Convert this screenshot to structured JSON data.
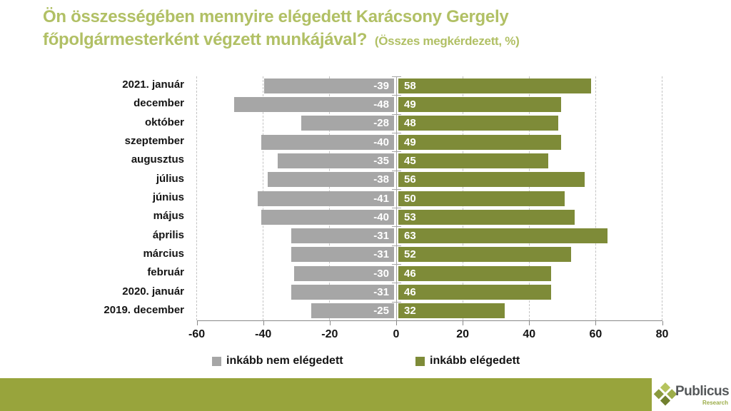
{
  "title": {
    "line1": "Ön összességében mennyire elégedett Karácsony Gergely",
    "line2": "főpolgármesterként végzett munkájával?",
    "suffix": "(Összes megkérdezett, %)",
    "color": "#b1c065"
  },
  "chart_data": {
    "type": "bar",
    "orientation": "horizontal-diverging",
    "categories": [
      "2021. január",
      "december",
      "október",
      "szeptember",
      "augusztus",
      "július",
      "június",
      "május",
      "április",
      "március",
      "február",
      "2020. január",
      "2019. december"
    ],
    "series": [
      {
        "name": "inkább nem elégedett",
        "color": "#a6a6a6",
        "values": [
          -39,
          -48,
          -28,
          -40,
          -35,
          -38,
          -41,
          -40,
          -31,
          -31,
          -30,
          -31,
          -25
        ]
      },
      {
        "name": "inkább elégedett",
        "color": "#7e8b38",
        "values": [
          58,
          49,
          48,
          49,
          45,
          56,
          50,
          53,
          63,
          52,
          46,
          46,
          32
        ]
      }
    ],
    "xticks": [
      -60,
      -40,
      -20,
      0,
      20,
      40,
      60,
      80
    ],
    "xlim": [
      -60,
      80
    ],
    "grid": "vertical-dashed",
    "value_labels": "inside-end, white bold",
    "legend_position": "bottom"
  },
  "legend": {
    "items": [
      {
        "label": "inkább nem elégedett",
        "color": "#a6a6a6"
      },
      {
        "label": "inkább elégedett",
        "color": "#7e8b38"
      }
    ]
  },
  "footer": {
    "brand": "Publicus",
    "brand_sub": "Research",
    "bar_color": "#98a43c",
    "brand_color": "#55585a",
    "brand_sub_color": "#9cad49",
    "diamond_colors": [
      "#b6c45e",
      "#9cad49",
      "#8a9a3e",
      "#71802f"
    ]
  },
  "colors": {
    "axis_line": "#898989",
    "gridline": "#c3c3c3",
    "category_axis": "#a6a6a6",
    "text": "#141414"
  }
}
